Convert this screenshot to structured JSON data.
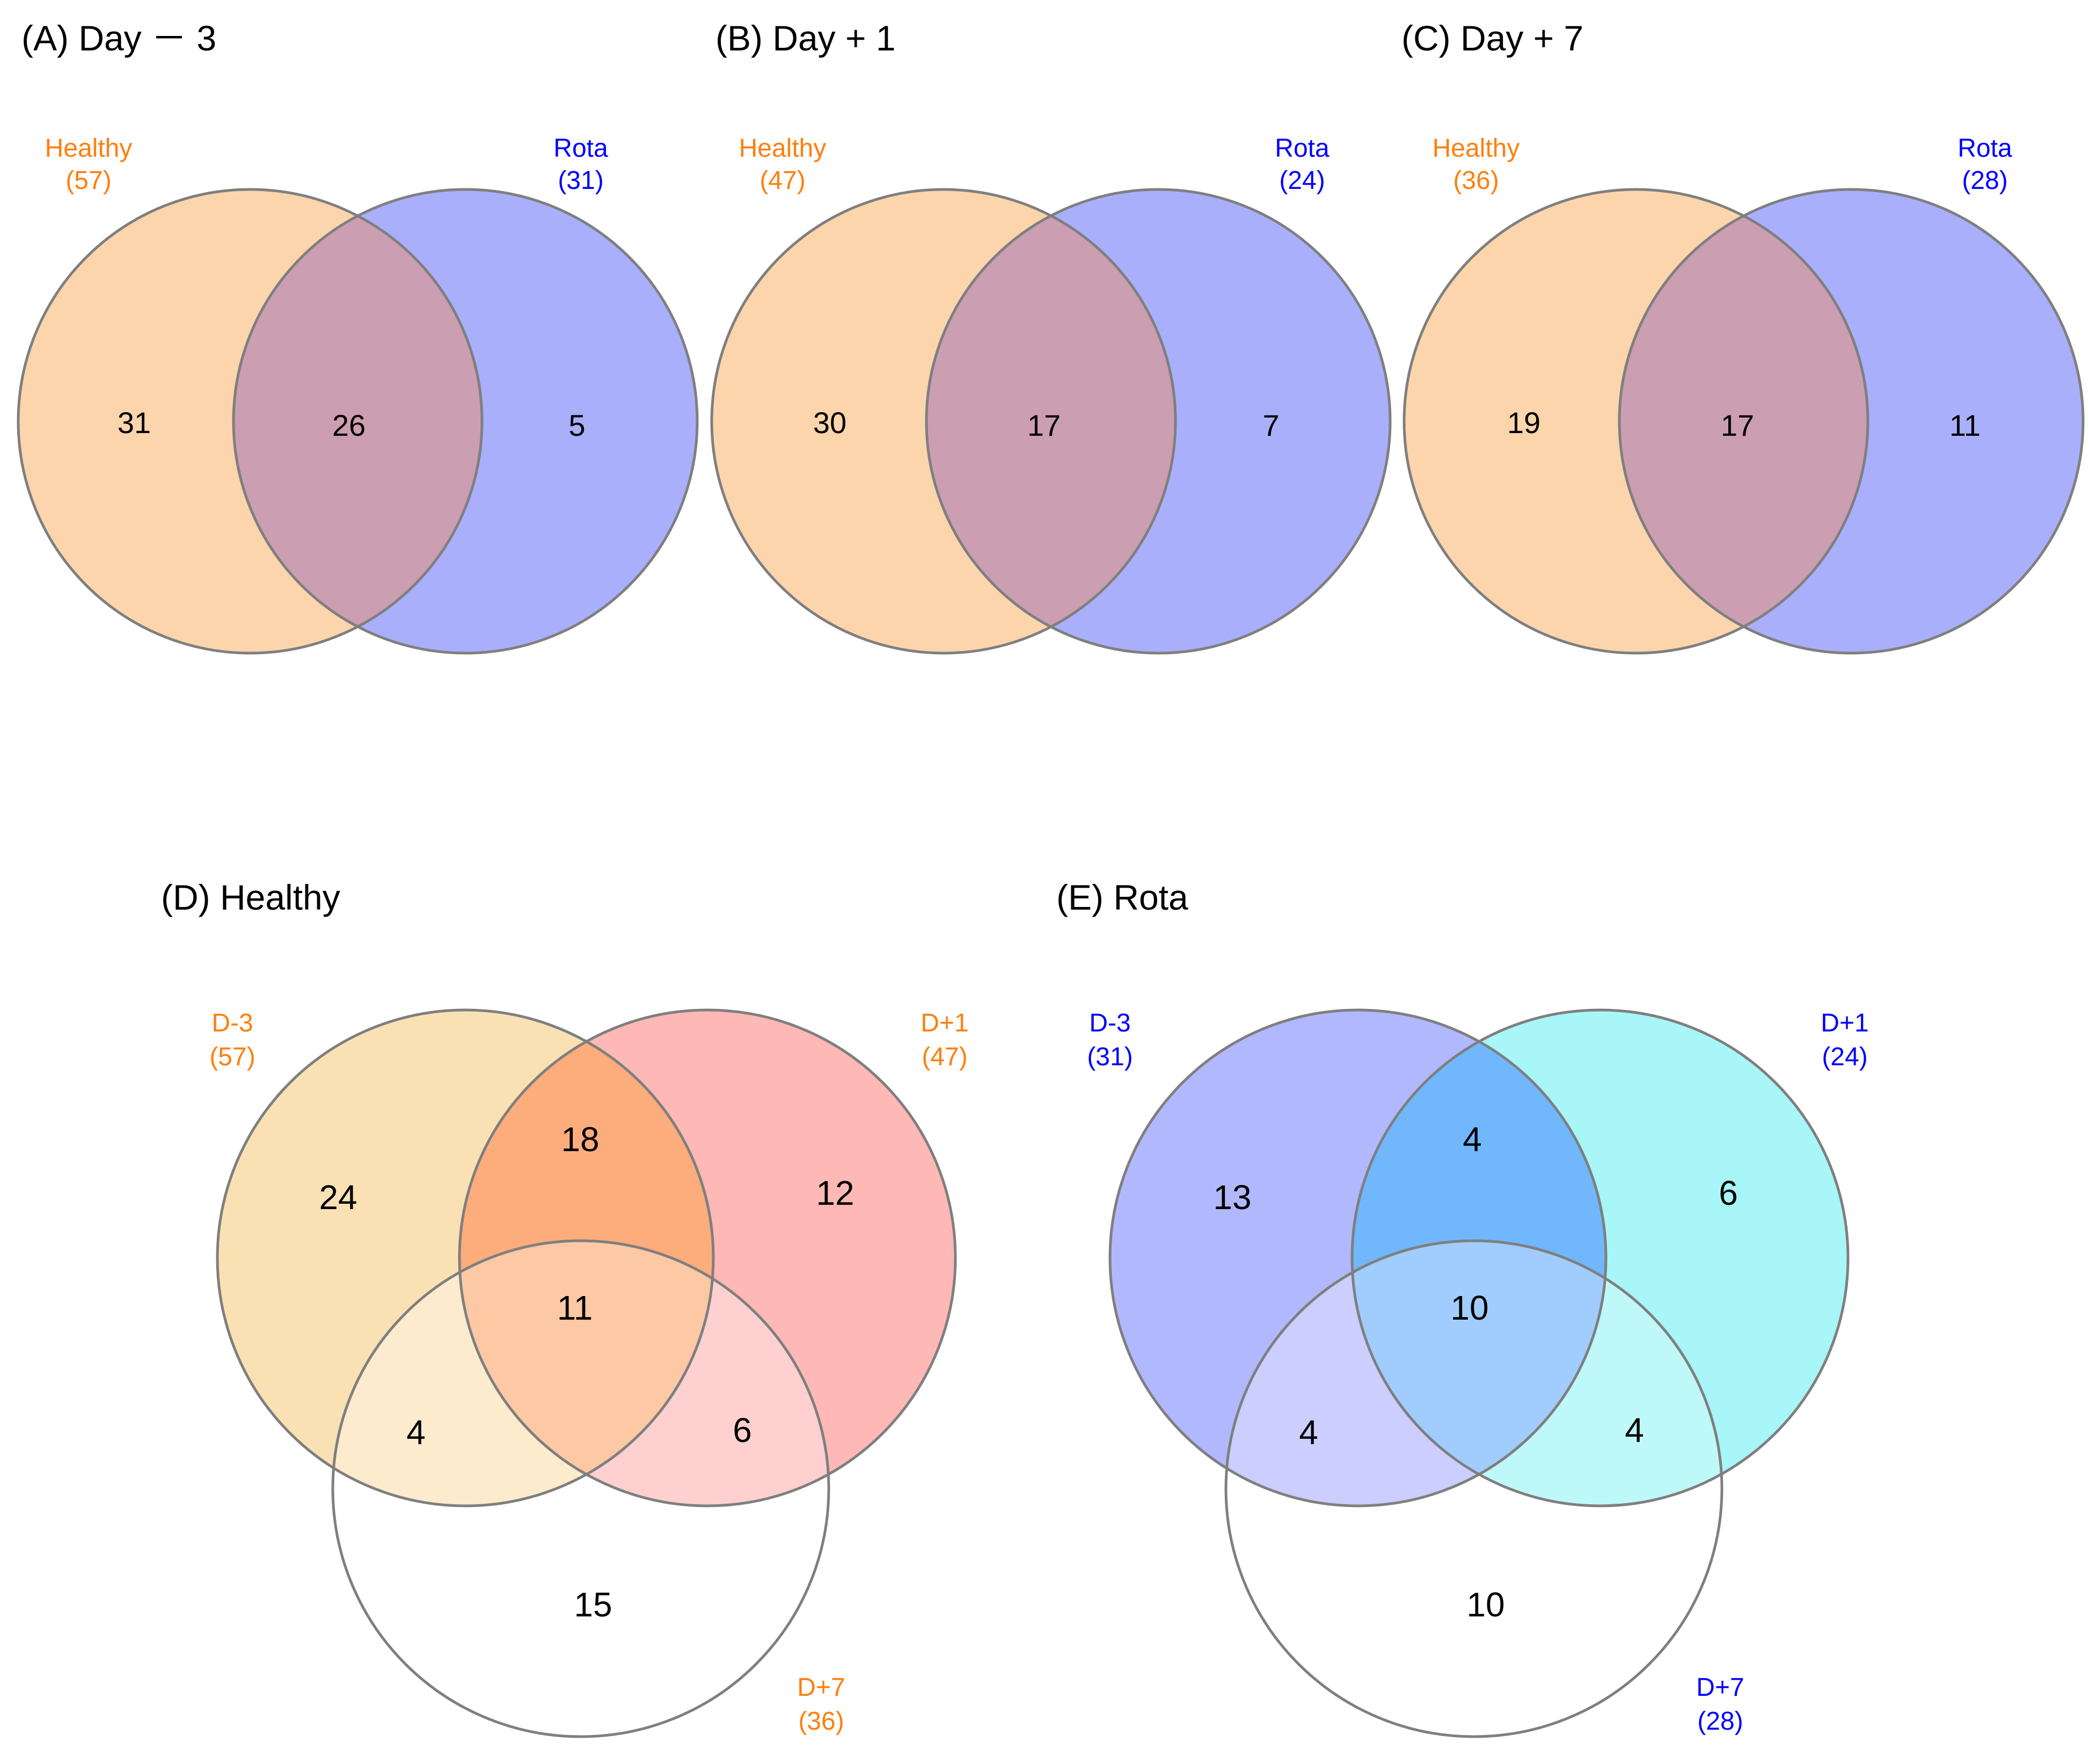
{
  "colors": {
    "healthy_label": "#ff7f0e",
    "rota_label": "#0000ff",
    "healthy_fill": "#fcd5ac",
    "rota_fill": "#aaaffc",
    "overlap_fill": "#cc9eb1",
    "d3_healthy_fill": "#fae1b4",
    "d1_healthy_fill": "#feb8b5",
    "d31_healthy_fill": "#fdac7c",
    "d37_healthy_fill": "#fdebcd",
    "d17_healthy_fill": "#fed1d0",
    "all_healthy_fill": "#fdc8a4",
    "d3_rota_fill": "#b2b8fe",
    "d1_rota_fill": "#a8f6f7",
    "d31_rota_fill": "#70b7fe",
    "d37_rota_fill": "#cbcefe",
    "d17_rota_fill": "#bff8f8",
    "all_rota_fill": "#a0cdfe",
    "d7_fill": "#ffffff",
    "circle_stroke": "#7f7f7f"
  },
  "panels": {
    "A": {
      "title": "(A) Day － 3",
      "left_set": {
        "name": "Healthy",
        "count": "(57)"
      },
      "right_set": {
        "name": "Rota",
        "count": "(31)"
      },
      "regions": {
        "left_only": "31",
        "both": "26",
        "right_only": "5"
      }
    },
    "B": {
      "title": "(B) Day + 1",
      "left_set": {
        "name": "Healthy",
        "count": "(47)"
      },
      "right_set": {
        "name": "Rota",
        "count": "(24)"
      },
      "regions": {
        "left_only": "30",
        "both": "17",
        "right_only": "7"
      }
    },
    "C": {
      "title": "(C) Day + 7",
      "left_set": {
        "name": "Healthy",
        "count": "(36)"
      },
      "right_set": {
        "name": "Rota",
        "count": "(28)"
      },
      "regions": {
        "left_only": "19",
        "both": "17",
        "right_only": "11"
      }
    },
    "D": {
      "title": "(D) Healthy",
      "set_d3": {
        "name": "D-3",
        "count": "(57)"
      },
      "set_d1": {
        "name": "D+1",
        "count": "(47)"
      },
      "set_d7": {
        "name": "D+7",
        "count": "(36)"
      },
      "regions": {
        "d3_only": "24",
        "d3_d1": "18",
        "d1_only": "12",
        "all": "11",
        "d3_d7": "4",
        "d1_d7": "6",
        "d7_only": "15"
      }
    },
    "E": {
      "title": "(E) Rota",
      "set_d3": {
        "name": "D-3",
        "count": "(31)"
      },
      "set_d1": {
        "name": "D+1",
        "count": "(24)"
      },
      "set_d7": {
        "name": "D+7",
        "count": "(28)"
      },
      "regions": {
        "d3_only": "13",
        "d3_d1": "4",
        "d1_only": "6",
        "all": "10",
        "d3_d7": "4",
        "d1_d7": "4",
        "d7_only": "10"
      }
    }
  }
}
